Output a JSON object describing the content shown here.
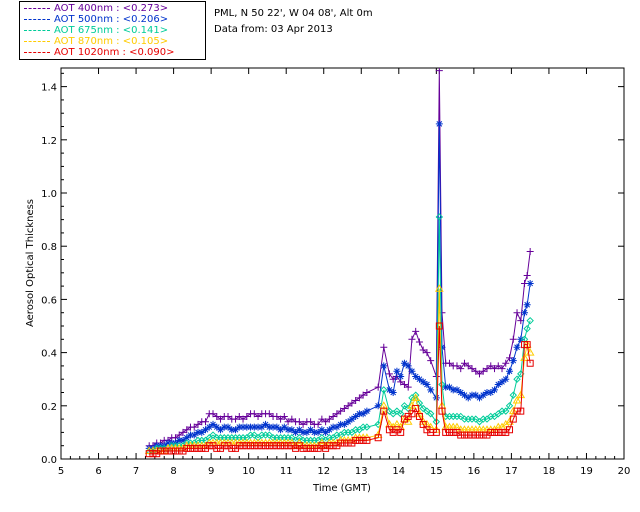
{
  "location_text": "PML, N 50 22', W 04 08', Alt 0m",
  "date_text": "Data from: 03 Apr 2013",
  "chart_data": {
    "type": "line",
    "xlabel": "Time (GMT)",
    "ylabel": "Aerosol Optical Thickness",
    "xlim": [
      5,
      20
    ],
    "ylim": [
      0.0,
      1.47
    ],
    "xticks": [
      "5",
      "6",
      "7",
      "8",
      "9",
      "10",
      "11",
      "12",
      "13",
      "14",
      "15",
      "16",
      "17",
      "18",
      "19",
      "20"
    ],
    "yticks": [
      "0.0",
      "0.2",
      "0.4",
      "0.6",
      "0.8",
      "1.0",
      "1.2",
      "1.4"
    ],
    "legend_placement": "top-left",
    "series": [
      {
        "name": "AOT  400nm : <0.273>",
        "color": "#660099",
        "marker": "plus",
        "x": [
          7.35,
          7.45,
          7.55,
          7.65,
          7.75,
          7.85,
          7.95,
          8.05,
          8.15,
          8.25,
          8.35,
          8.45,
          8.55,
          8.65,
          8.75,
          8.85,
          8.95,
          9.05,
          9.15,
          9.25,
          9.35,
          9.45,
          9.55,
          9.65,
          9.75,
          9.85,
          9.95,
          10.05,
          10.15,
          10.25,
          10.35,
          10.45,
          10.55,
          10.65,
          10.75,
          10.85,
          10.95,
          11.05,
          11.15,
          11.25,
          11.35,
          11.45,
          11.55,
          11.65,
          11.75,
          11.85,
          11.95,
          12.05,
          12.15,
          12.25,
          12.35,
          12.45,
          12.55,
          12.65,
          12.75,
          12.85,
          12.95,
          13.05,
          13.15,
          13.45,
          13.6,
          13.75,
          13.85,
          13.95,
          14.05,
          14.15,
          14.25,
          14.35,
          14.45,
          14.55,
          14.65,
          14.75,
          14.85,
          15.0,
          15.08,
          15.15,
          15.25,
          15.35,
          15.45,
          15.55,
          15.65,
          15.75,
          15.85,
          15.95,
          16.05,
          16.15,
          16.25,
          16.35,
          16.45,
          16.55,
          16.65,
          16.75,
          16.85,
          16.95,
          17.05,
          17.15,
          17.25,
          17.35,
          17.42,
          17.5
        ],
        "y": [
          0.05,
          0.05,
          0.06,
          0.06,
          0.07,
          0.07,
          0.08,
          0.08,
          0.09,
          0.1,
          0.11,
          0.12,
          0.12,
          0.13,
          0.14,
          0.14,
          0.17,
          0.17,
          0.16,
          0.15,
          0.16,
          0.16,
          0.15,
          0.15,
          0.16,
          0.15,
          0.16,
          0.17,
          0.17,
          0.16,
          0.17,
          0.17,
          0.17,
          0.16,
          0.16,
          0.15,
          0.16,
          0.14,
          0.15,
          0.14,
          0.14,
          0.13,
          0.14,
          0.14,
          0.13,
          0.13,
          0.15,
          0.14,
          0.15,
          0.16,
          0.17,
          0.18,
          0.19,
          0.2,
          0.21,
          0.22,
          0.23,
          0.24,
          0.25,
          0.27,
          0.42,
          0.32,
          0.3,
          0.31,
          0.29,
          0.28,
          0.27,
          0.45,
          0.48,
          0.44,
          0.41,
          0.4,
          0.37,
          0.31,
          1.46,
          0.55,
          0.36,
          0.36,
          0.35,
          0.35,
          0.34,
          0.36,
          0.35,
          0.34,
          0.33,
          0.32,
          0.33,
          0.34,
          0.35,
          0.34,
          0.35,
          0.34,
          0.36,
          0.38,
          0.45,
          0.55,
          0.52,
          0.66,
          0.69,
          0.78
        ]
      },
      {
        "name": "AOT  500nm : <0.206>",
        "color": "#0033cc",
        "marker": "star",
        "x": [
          7.35,
          7.45,
          7.55,
          7.65,
          7.75,
          7.85,
          7.95,
          8.05,
          8.15,
          8.25,
          8.35,
          8.45,
          8.55,
          8.65,
          8.75,
          8.85,
          8.95,
          9.05,
          9.15,
          9.25,
          9.35,
          9.45,
          9.55,
          9.65,
          9.75,
          9.85,
          9.95,
          10.05,
          10.15,
          10.25,
          10.35,
          10.45,
          10.55,
          10.65,
          10.75,
          10.85,
          10.95,
          11.05,
          11.15,
          11.25,
          11.35,
          11.45,
          11.55,
          11.65,
          11.75,
          11.85,
          11.95,
          12.05,
          12.15,
          12.25,
          12.35,
          12.45,
          12.55,
          12.65,
          12.75,
          12.85,
          12.95,
          13.05,
          13.15,
          13.45,
          13.6,
          13.75,
          13.85,
          13.95,
          14.05,
          14.15,
          14.25,
          14.35,
          14.45,
          14.55,
          14.65,
          14.75,
          14.85,
          15.0,
          15.08,
          15.15,
          15.25,
          15.35,
          15.45,
          15.55,
          15.65,
          15.75,
          15.85,
          15.95,
          16.05,
          16.15,
          16.25,
          16.35,
          16.45,
          16.55,
          16.65,
          16.75,
          16.85,
          16.95,
          17.05,
          17.15,
          17.25,
          17.35,
          17.42,
          17.5
        ],
        "y": [
          0.04,
          0.04,
          0.05,
          0.05,
          0.05,
          0.06,
          0.06,
          0.06,
          0.07,
          0.07,
          0.08,
          0.09,
          0.09,
          0.1,
          0.1,
          0.11,
          0.12,
          0.13,
          0.12,
          0.11,
          0.12,
          0.12,
          0.11,
          0.11,
          0.12,
          0.12,
          0.12,
          0.12,
          0.12,
          0.12,
          0.12,
          0.13,
          0.12,
          0.12,
          0.12,
          0.11,
          0.12,
          0.11,
          0.11,
          0.1,
          0.11,
          0.1,
          0.1,
          0.11,
          0.1,
          0.1,
          0.11,
          0.1,
          0.11,
          0.12,
          0.12,
          0.13,
          0.13,
          0.14,
          0.15,
          0.16,
          0.17,
          0.17,
          0.18,
          0.2,
          0.35,
          0.26,
          0.25,
          0.33,
          0.31,
          0.36,
          0.35,
          0.33,
          0.31,
          0.3,
          0.29,
          0.28,
          0.26,
          0.23,
          1.26,
          0.42,
          0.27,
          0.27,
          0.26,
          0.26,
          0.25,
          0.24,
          0.23,
          0.24,
          0.24,
          0.23,
          0.24,
          0.25,
          0.25,
          0.26,
          0.28,
          0.29,
          0.3,
          0.33,
          0.37,
          0.42,
          0.45,
          0.55,
          0.58,
          0.66
        ]
      },
      {
        "name": "AOT  675nm : <0.141>",
        "color": "#00cc99",
        "marker": "diamond",
        "x": [
          7.35,
          7.45,
          7.55,
          7.65,
          7.75,
          7.85,
          7.95,
          8.05,
          8.15,
          8.25,
          8.35,
          8.45,
          8.55,
          8.65,
          8.75,
          8.85,
          8.95,
          9.05,
          9.15,
          9.25,
          9.35,
          9.45,
          9.55,
          9.65,
          9.75,
          9.85,
          9.95,
          10.05,
          10.15,
          10.25,
          10.35,
          10.45,
          10.55,
          10.65,
          10.75,
          10.85,
          10.95,
          11.05,
          11.15,
          11.25,
          11.35,
          11.45,
          11.55,
          11.65,
          11.75,
          11.85,
          11.95,
          12.05,
          12.15,
          12.25,
          12.35,
          12.45,
          12.55,
          12.65,
          12.75,
          12.85,
          12.95,
          13.05,
          13.15,
          13.45,
          13.6,
          13.75,
          13.85,
          13.95,
          14.05,
          14.15,
          14.25,
          14.35,
          14.45,
          14.55,
          14.65,
          14.75,
          14.85,
          15.0,
          15.08,
          15.15,
          15.25,
          15.35,
          15.45,
          15.55,
          15.65,
          15.75,
          15.85,
          15.95,
          16.05,
          16.15,
          16.25,
          16.35,
          16.45,
          16.55,
          16.65,
          16.75,
          16.85,
          16.95,
          17.05,
          17.15,
          17.25,
          17.35,
          17.42,
          17.5
        ],
        "y": [
          0.03,
          0.03,
          0.04,
          0.04,
          0.04,
          0.04,
          0.05,
          0.05,
          0.05,
          0.05,
          0.06,
          0.06,
          0.06,
          0.07,
          0.07,
          0.07,
          0.08,
          0.09,
          0.08,
          0.08,
          0.08,
          0.08,
          0.08,
          0.08,
          0.08,
          0.08,
          0.08,
          0.09,
          0.09,
          0.08,
          0.09,
          0.09,
          0.09,
          0.08,
          0.08,
          0.08,
          0.08,
          0.08,
          0.08,
          0.07,
          0.08,
          0.07,
          0.07,
          0.07,
          0.07,
          0.07,
          0.08,
          0.07,
          0.08,
          0.08,
          0.09,
          0.09,
          0.1,
          0.1,
          0.1,
          0.11,
          0.11,
          0.12,
          0.12,
          0.13,
          0.26,
          0.18,
          0.17,
          0.18,
          0.17,
          0.2,
          0.19,
          0.23,
          0.24,
          0.21,
          0.19,
          0.18,
          0.17,
          0.14,
          0.91,
          0.28,
          0.16,
          0.16,
          0.16,
          0.16,
          0.16,
          0.15,
          0.15,
          0.15,
          0.15,
          0.14,
          0.15,
          0.15,
          0.16,
          0.16,
          0.17,
          0.18,
          0.18,
          0.2,
          0.24,
          0.3,
          0.32,
          0.45,
          0.49,
          0.52
        ]
      },
      {
        "name": "AOT  870nm : <0.105>",
        "color": "#ffcc00",
        "marker": "triangle",
        "x": [
          7.35,
          7.45,
          7.55,
          7.65,
          7.75,
          7.85,
          7.95,
          8.05,
          8.15,
          8.25,
          8.35,
          8.45,
          8.55,
          8.65,
          8.75,
          8.85,
          8.95,
          9.05,
          9.15,
          9.25,
          9.35,
          9.45,
          9.55,
          9.65,
          9.75,
          9.85,
          9.95,
          10.05,
          10.15,
          10.25,
          10.35,
          10.45,
          10.55,
          10.65,
          10.75,
          10.85,
          10.95,
          11.05,
          11.15,
          11.25,
          11.35,
          11.45,
          11.55,
          11.65,
          11.75,
          11.85,
          11.95,
          12.05,
          12.15,
          12.25,
          12.35,
          12.45,
          12.55,
          12.65,
          12.75,
          12.85,
          12.95,
          13.05,
          13.15,
          13.45,
          13.6,
          13.75,
          13.85,
          13.95,
          14.05,
          14.15,
          14.25,
          14.35,
          14.45,
          14.55,
          14.65,
          14.75,
          14.85,
          15.0,
          15.08,
          15.15,
          15.25,
          15.35,
          15.45,
          15.55,
          15.65,
          15.75,
          15.85,
          15.95,
          16.05,
          16.15,
          16.25,
          16.35,
          16.45,
          16.55,
          16.65,
          16.75,
          16.85,
          16.95,
          17.05,
          17.15,
          17.25,
          17.35,
          17.42,
          17.5
        ],
        "y": [
          0.03,
          0.03,
          0.03,
          0.03,
          0.03,
          0.04,
          0.04,
          0.04,
          0.04,
          0.04,
          0.05,
          0.05,
          0.05,
          0.05,
          0.05,
          0.05,
          0.06,
          0.06,
          0.06,
          0.06,
          0.06,
          0.06,
          0.06,
          0.06,
          0.06,
          0.06,
          0.06,
          0.06,
          0.06,
          0.06,
          0.06,
          0.06,
          0.06,
          0.06,
          0.06,
          0.06,
          0.06,
          0.06,
          0.06,
          0.05,
          0.06,
          0.05,
          0.05,
          0.05,
          0.05,
          0.05,
          0.06,
          0.05,
          0.06,
          0.06,
          0.06,
          0.07,
          0.07,
          0.07,
          0.07,
          0.08,
          0.08,
          0.08,
          0.08,
          0.09,
          0.2,
          0.13,
          0.12,
          0.13,
          0.12,
          0.15,
          0.14,
          0.2,
          0.23,
          0.17,
          0.14,
          0.13,
          0.12,
          0.11,
          0.64,
          0.2,
          0.12,
          0.12,
          0.12,
          0.12,
          0.11,
          0.11,
          0.11,
          0.11,
          0.11,
          0.11,
          0.11,
          0.11,
          0.11,
          0.11,
          0.12,
          0.12,
          0.13,
          0.14,
          0.18,
          0.22,
          0.24,
          0.38,
          0.43,
          0.4
        ]
      },
      {
        "name": "AOT 1020nm : <0.090>",
        "color": "#e60000",
        "marker": "square",
        "x": [
          7.35,
          7.45,
          7.55,
          7.65,
          7.75,
          7.85,
          7.95,
          8.05,
          8.15,
          8.25,
          8.35,
          8.45,
          8.55,
          8.65,
          8.75,
          8.85,
          8.95,
          9.05,
          9.15,
          9.25,
          9.35,
          9.45,
          9.55,
          9.65,
          9.75,
          9.85,
          9.95,
          10.05,
          10.15,
          10.25,
          10.35,
          10.45,
          10.55,
          10.65,
          10.75,
          10.85,
          10.95,
          11.05,
          11.15,
          11.25,
          11.35,
          11.45,
          11.55,
          11.65,
          11.75,
          11.85,
          11.95,
          12.05,
          12.15,
          12.25,
          12.35,
          12.45,
          12.55,
          12.65,
          12.75,
          12.85,
          12.95,
          13.05,
          13.15,
          13.45,
          13.6,
          13.75,
          13.85,
          13.95,
          14.05,
          14.15,
          14.25,
          14.35,
          14.45,
          14.55,
          14.65,
          14.75,
          14.85,
          15.0,
          15.08,
          15.15,
          15.25,
          15.35,
          15.45,
          15.55,
          15.65,
          15.75,
          15.85,
          15.95,
          16.05,
          16.15,
          16.25,
          16.35,
          16.45,
          16.55,
          16.65,
          16.75,
          16.85,
          16.95,
          17.05,
          17.15,
          17.25,
          17.35,
          17.42,
          17.5
        ],
        "y": [
          0.02,
          0.02,
          0.02,
          0.03,
          0.03,
          0.03,
          0.03,
          0.03,
          0.03,
          0.03,
          0.04,
          0.04,
          0.04,
          0.04,
          0.04,
          0.04,
          0.05,
          0.05,
          0.04,
          0.04,
          0.05,
          0.05,
          0.04,
          0.04,
          0.05,
          0.05,
          0.05,
          0.05,
          0.05,
          0.05,
          0.05,
          0.05,
          0.05,
          0.05,
          0.05,
          0.05,
          0.05,
          0.05,
          0.05,
          0.04,
          0.05,
          0.04,
          0.04,
          0.04,
          0.04,
          0.04,
          0.05,
          0.04,
          0.05,
          0.05,
          0.05,
          0.06,
          0.06,
          0.06,
          0.06,
          0.07,
          0.07,
          0.07,
          0.07,
          0.08,
          0.18,
          0.11,
          0.1,
          0.11,
          0.1,
          0.15,
          0.16,
          0.17,
          0.19,
          0.16,
          0.13,
          0.11,
          0.1,
          0.1,
          0.5,
          0.18,
          0.1,
          0.1,
          0.1,
          0.1,
          0.09,
          0.09,
          0.09,
          0.09,
          0.09,
          0.09,
          0.09,
          0.09,
          0.1,
          0.1,
          0.1,
          0.1,
          0.1,
          0.11,
          0.15,
          0.18,
          0.18,
          0.43,
          0.43,
          0.36
        ]
      }
    ]
  }
}
